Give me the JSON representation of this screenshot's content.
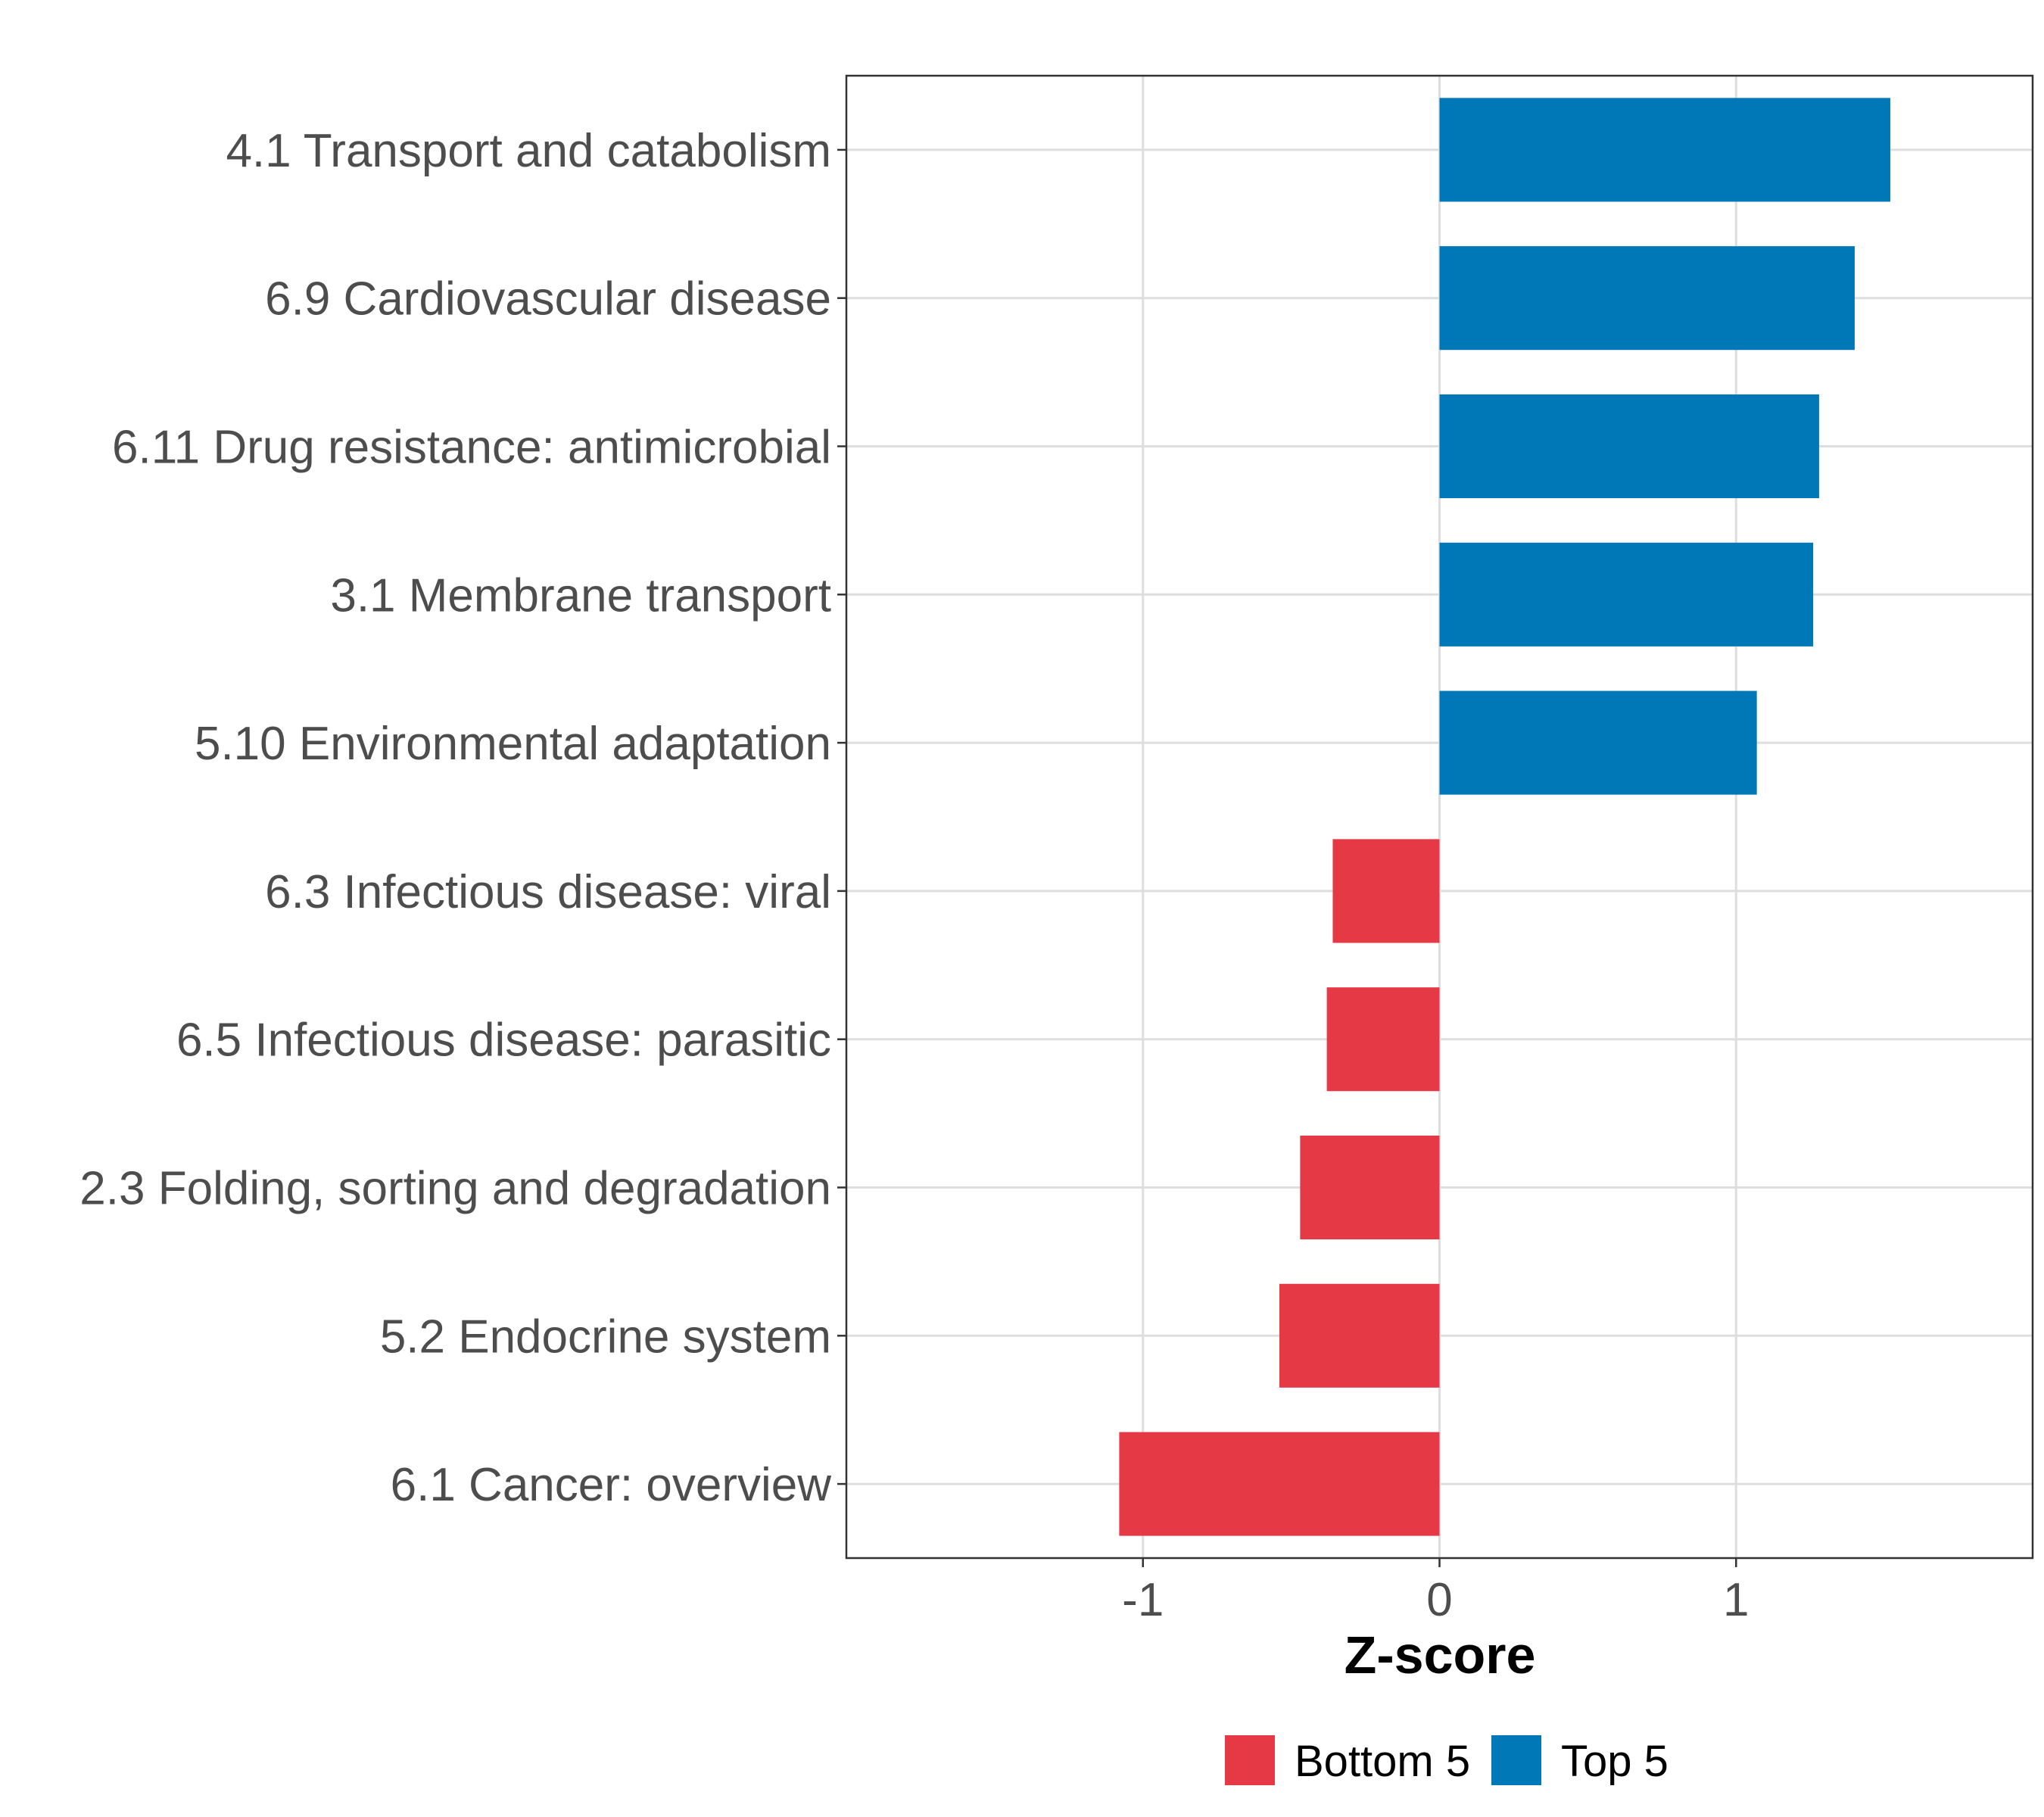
{
  "chart_data": {
    "type": "bar",
    "orientation": "horizontal",
    "title": "",
    "xlabel": "Z-score",
    "ylabel": "",
    "xlim": [
      -2.0,
      2.0
    ],
    "xticks": [
      -1,
      0,
      1
    ],
    "xtick_labels": [
      "-1",
      "0",
      "1"
    ],
    "grid": true,
    "legend_position": "bottom",
    "categories": [
      "4.1 Transport and catabolism",
      "6.9 Cardiovascular disease",
      "6.11 Drug resistance: antimicrobial",
      "3.1 Membrane transport",
      "5.10 Environmental adaptation",
      "6.3 Infectious disease: viral",
      "6.5 Infectious disease: parasitic",
      "2.3 Folding, sorting and degradation",
      "5.2 Endocrine system",
      "6.1 Cancer: overview"
    ],
    "values": [
      1.52,
      1.4,
      1.28,
      1.26,
      1.07,
      -0.36,
      -0.38,
      -0.47,
      -0.54,
      -1.08
    ],
    "groups": [
      "Top 5",
      "Top 5",
      "Top 5",
      "Top 5",
      "Top 5",
      "Bottom 5",
      "Bottom 5",
      "Bottom 5",
      "Bottom 5",
      "Bottom 5"
    ],
    "legend": [
      {
        "name": "Bottom 5",
        "color": "#e63946"
      },
      {
        "name": "Top 5",
        "color": "#0077b6"
      }
    ]
  }
}
